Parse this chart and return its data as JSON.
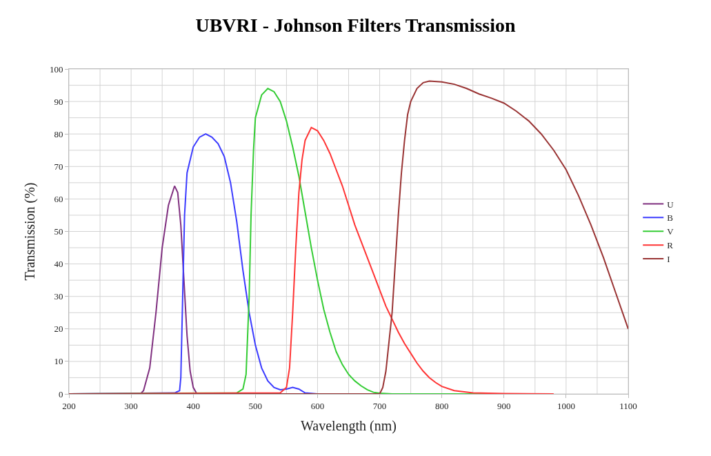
{
  "chart_data": {
    "type": "line",
    "title": "UBVRI - Johnson Filters Transmission",
    "xlabel": "Wavelength (nm)",
    "ylabel": "Transmission (%)",
    "xlim": [
      200,
      1100
    ],
    "xticks": [
      200,
      300,
      400,
      500,
      600,
      700,
      800,
      900,
      1000,
      1100
    ],
    "ylim": [
      0,
      100
    ],
    "yticks": [
      0,
      10,
      20,
      30,
      40,
      50,
      60,
      70,
      80,
      90,
      100
    ],
    "grid": true,
    "legend": "right",
    "marker": "none",
    "line_style": "solid",
    "series": [
      {
        "name": "U",
        "color": "#7f2f7f",
        "x": [
          200,
          300,
          315,
          320,
          330,
          340,
          350,
          360,
          370,
          375,
          380,
          385,
          390,
          395,
          400,
          405,
          410,
          500,
          700
        ],
        "values": [
          0,
          0,
          0,
          1,
          8,
          25,
          45,
          58,
          64,
          62,
          52,
          35,
          18,
          7,
          2,
          0.3,
          0,
          0,
          0
        ]
      },
      {
        "name": "B",
        "color": "#3a3aff",
        "x": [
          200,
          370,
          378,
          380,
          383,
          386,
          390,
          400,
          410,
          420,
          430,
          440,
          450,
          460,
          470,
          480,
          490,
          500,
          510,
          520,
          530,
          540,
          550,
          560,
          570,
          580,
          600,
          700
        ],
        "values": [
          0,
          0.3,
          1,
          5,
          30,
          55,
          68,
          76,
          79,
          80,
          79,
          77,
          73,
          65,
          53,
          38,
          25,
          15,
          8,
          4,
          2,
          1.3,
          1.5,
          2,
          1.5,
          0.3,
          0,
          0
        ]
      },
      {
        "name": "V",
        "color": "#33cc33",
        "x": [
          200,
          470,
          480,
          485,
          490,
          493,
          497,
          500,
          510,
          520,
          530,
          540,
          550,
          560,
          570,
          580,
          590,
          600,
          610,
          620,
          630,
          640,
          650,
          660,
          670,
          680,
          690,
          700,
          720,
          900
        ],
        "values": [
          0,
          0.3,
          1.5,
          6,
          30,
          55,
          75,
          85,
          92,
          94,
          93,
          90,
          84,
          76,
          67,
          56,
          45,
          35,
          26,
          19,
          13,
          9,
          6,
          4,
          2.5,
          1.3,
          0.5,
          0.2,
          0,
          0
        ]
      },
      {
        "name": "R",
        "color": "#ff3333",
        "x": [
          200,
          540,
          550,
          555,
          560,
          565,
          570,
          575,
          580,
          590,
          600,
          610,
          620,
          630,
          640,
          650,
          660,
          670,
          680,
          690,
          700,
          710,
          720,
          730,
          740,
          750,
          760,
          770,
          780,
          790,
          800,
          820,
          850,
          900,
          980
        ],
        "values": [
          0,
          0.3,
          2,
          8,
          25,
          45,
          62,
          72,
          78,
          82,
          81,
          78,
          74,
          69,
          64,
          58,
          52,
          47,
          42,
          37,
          32,
          27,
          23,
          19,
          15.5,
          12.5,
          9.5,
          7,
          5,
          3.5,
          2.3,
          1,
          0.3,
          0.1,
          0
        ]
      },
      {
        "name": "I",
        "color": "#993333",
        "x": [
          200,
          700,
          705,
          710,
          720,
          725,
          730,
          735,
          740,
          745,
          750,
          760,
          770,
          780,
          800,
          820,
          840,
          860,
          880,
          900,
          920,
          940,
          960,
          980,
          1000,
          1020,
          1040,
          1060,
          1080,
          1100
        ],
        "values": [
          0,
          0,
          2,
          7,
          25,
          40,
          55,
          68,
          78,
          86,
          90,
          94,
          95.8,
          96.3,
          96,
          95.3,
          94,
          92.3,
          91,
          89.5,
          87,
          84,
          80,
          75,
          69,
          61,
          52,
          42,
          31,
          20
        ]
      }
    ]
  }
}
